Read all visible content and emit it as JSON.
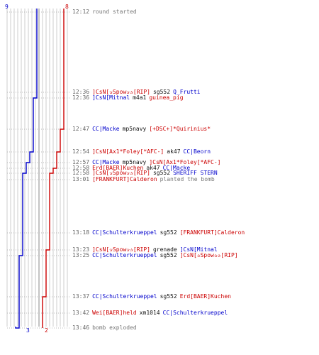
{
  "colors": {
    "team_a": "#0000cc",
    "team_b": "#cc0000",
    "grid": "#cccccc",
    "text": "#111111",
    "time": "#666666"
  },
  "team_counts": {
    "blue_start": "9",
    "red_start": "8",
    "blue_end": "3",
    "red_end": "2"
  },
  "events": [
    {
      "time": "12:12",
      "parts": [
        {
          "text": "round started",
          "cls": "note"
        }
      ]
    },
    {
      "time": "12:36",
      "parts": [
        {
          "text": "]CsN[✰Spow✰✰[RIP]",
          "cls": "red"
        },
        {
          "text": "sg552",
          "cls": "black"
        },
        {
          "text": "Q_Frutti",
          "cls": "blue"
        }
      ]
    },
    {
      "time": "12:36",
      "parts": [
        {
          "text": "]CsN[Mitnal",
          "cls": "blue"
        },
        {
          "text": "m4a1",
          "cls": "black"
        },
        {
          "text": "guinea_pig",
          "cls": "red"
        }
      ]
    },
    {
      "time": "12:47",
      "parts": [
        {
          "text": "CC|Macke",
          "cls": "blue"
        },
        {
          "text": "mp5navy",
          "cls": "black"
        },
        {
          "text": "[+DSC+]*Quirinius*",
          "cls": "red"
        }
      ]
    },
    {
      "time": "12:54",
      "parts": [
        {
          "text": "]CsN[Ax1*Foley[*AFC-]",
          "cls": "red"
        },
        {
          "text": "ak47",
          "cls": "black"
        },
        {
          "text": "CC|Beorn",
          "cls": "blue"
        }
      ]
    },
    {
      "time": "12:57",
      "parts": [
        {
          "text": "CC|Macke",
          "cls": "blue"
        },
        {
          "text": "mp5navy",
          "cls": "black"
        },
        {
          "text": "]CsN[Ax1*Foley[*AFC-]",
          "cls": "red"
        }
      ]
    },
    {
      "time": "12:58",
      "parts": [
        {
          "text": "Erd[BAER]Kuchen",
          "cls": "red"
        },
        {
          "text": "ak47",
          "cls": "black"
        },
        {
          "text": "CC|Macke",
          "cls": "blue"
        }
      ]
    },
    {
      "time": "12:58",
      "parts": [
        {
          "text": "]CsN[✰Spow✰✰[RIP]",
          "cls": "red"
        },
        {
          "text": "sg552",
          "cls": "black"
        },
        {
          "text": "SHERIFF STERN",
          "cls": "blue"
        }
      ]
    },
    {
      "time": "13:01",
      "parts": [
        {
          "text": "[FRANKFURT]Calderon",
          "cls": "red"
        },
        {
          "text": "planted the bomb",
          "cls": "note"
        }
      ]
    },
    {
      "time": "13:18",
      "parts": [
        {
          "text": "CC|Schulterkrueppel",
          "cls": "blue"
        },
        {
          "text": "sg552",
          "cls": "black"
        },
        {
          "text": "[FRANKFURT]Calderon",
          "cls": "red"
        }
      ]
    },
    {
      "time": "13:23",
      "parts": [
        {
          "text": "]CsN[✰Spow✰✰[RIP]",
          "cls": "red"
        },
        {
          "text": "grenade",
          "cls": "black"
        },
        {
          "text": "]CsN[Mitnal",
          "cls": "blue"
        }
      ]
    },
    {
      "time": "13:25",
      "parts": [
        {
          "text": "CC|Schulterkrueppel",
          "cls": "blue"
        },
        {
          "text": "sg552",
          "cls": "black"
        },
        {
          "text": "]CsN[✰Spow✰✰[RIP]",
          "cls": "red"
        }
      ]
    },
    {
      "time": "13:37",
      "parts": [
        {
          "text": "CC|Schulterkrueppel",
          "cls": "blue"
        },
        {
          "text": "sg552",
          "cls": "black"
        },
        {
          "text": "Erd[BAER]Kuchen",
          "cls": "red"
        }
      ]
    },
    {
      "time": "13:42",
      "parts": [
        {
          "text": "Wei[BAER]held",
          "cls": "red"
        },
        {
          "text": "xm1014",
          "cls": "black"
        },
        {
          "text": "CC|Schulterkrueppel",
          "cls": "blue"
        }
      ]
    },
    {
      "time": "13:46",
      "parts": [
        {
          "text": "bomb exploded",
          "cls": "note"
        }
      ]
    }
  ],
  "alive_series": {
    "blue": [
      9,
      9,
      8,
      8,
      7,
      6,
      6,
      5,
      5,
      5,
      5,
      4,
      4,
      4,
      3,
      3
    ],
    "red": [
      8,
      8,
      8,
      7,
      6,
      6,
      5,
      4,
      4,
      4,
      3,
      3,
      2,
      2,
      2,
      2
    ]
  }
}
